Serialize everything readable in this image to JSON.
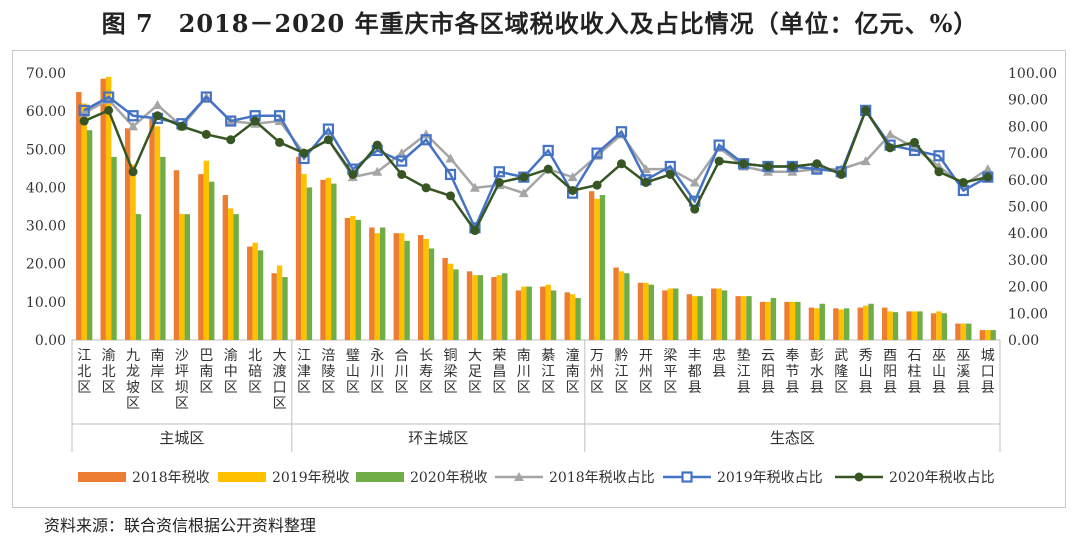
{
  "title": "图 7　2018－2020 年重庆市各区域税收收入及占比情况（单位：亿元、%）",
  "source": "资料来源：联合资信根据公开资料整理",
  "colors": {
    "s2018": "#ED7D31",
    "s2019": "#FFC000",
    "s2020": "#70AD47",
    "r2018": "#A5A5A5",
    "r2019": "#4472C4",
    "r2020": "#375623"
  },
  "chart_data": {
    "type": "bar",
    "title": "图 7　2018－2020 年重庆市各区域税收收入及占比情况（单位：亿元、%）",
    "categories": [
      "江北区",
      "渝北区",
      "九龙坡区",
      "南岸区",
      "沙坪坝区",
      "巴南区",
      "渝中区",
      "北碚区",
      "大渡口区",
      "江津区",
      "涪陵区",
      "璧山区",
      "永川区",
      "合川区",
      "长寿区",
      "铜梁区",
      "大足区",
      "荣昌区",
      "南川区",
      "綦江区",
      "潼南区",
      "万州区",
      "黔江区",
      "开州区",
      "梁平区",
      "丰都县",
      "忠县",
      "垫江县",
      "云阳县",
      "奉节县",
      "彭水县",
      "武隆区",
      "秀山县",
      "酉阳县",
      "石柱县",
      "巫山县",
      "巫溪县",
      "城口县"
    ],
    "groups": [
      {
        "name": "主城区",
        "count": 9
      },
      {
        "name": "环主城区",
        "count": 12
      },
      {
        "name": "生态区",
        "count": 17
      }
    ],
    "y_left": {
      "min": 0,
      "max": 70,
      "step": 10,
      "decimals": 2
    },
    "y_right": {
      "min": 0,
      "max": 100,
      "step": 10,
      "decimals": 2
    },
    "legend_position": "bottom",
    "bar_series": [
      {
        "name": "2018年税收",
        "values": [
          65,
          68.5,
          55.5,
          58,
          44.5,
          43.5,
          38,
          24.5,
          17.5,
          48,
          42,
          32,
          29.5,
          28,
          27.5,
          21.5,
          18,
          16.5,
          13,
          14,
          12.5,
          39,
          19,
          15,
          13,
          12,
          13.5,
          11.5,
          10,
          10,
          8.5,
          8.3,
          8.5,
          8.5,
          7.5,
          7,
          4.3,
          2.6
        ]
      },
      {
        "name": "2019年税收",
        "values": [
          62,
          69,
          46,
          56,
          33,
          47,
          34.5,
          25.5,
          19.5,
          43.5,
          42.5,
          32.5,
          28,
          28,
          26.5,
          20,
          17,
          17,
          14,
          14.5,
          12,
          37,
          18,
          15,
          13.5,
          11.5,
          13.5,
          11.5,
          10,
          10,
          8.3,
          8,
          9,
          7.5,
          7.5,
          7.5,
          4.3,
          2.6
        ]
      },
      {
        "name": "2020年税收",
        "values": [
          55,
          48,
          33,
          48,
          33,
          41.5,
          33,
          23.5,
          16.5,
          40,
          41,
          31.5,
          29.5,
          26,
          24,
          18.5,
          17,
          17.5,
          14,
          13,
          11,
          38,
          17.5,
          14.5,
          13.5,
          11.5,
          13,
          11.5,
          11,
          10,
          9.5,
          8.3,
          9.5,
          7.3,
          7.5,
          7,
          4.3,
          2.6
        ]
      }
    ],
    "line_series": [
      {
        "name": "2018年税收占比",
        "axis": "right",
        "marker": "triangle",
        "values": [
          85,
          90,
          80,
          88,
          80,
          91,
          82,
          81,
          82,
          70,
          75,
          61,
          63,
          70,
          77,
          68,
          57,
          58,
          55,
          64,
          61,
          69,
          77,
          64,
          64,
          59,
          72,
          65,
          63,
          63,
          64,
          64,
          67,
          77,
          72,
          65,
          58,
          64
        ]
      },
      {
        "name": "2019年税收占比",
        "axis": "right",
        "marker": "square",
        "values": [
          86,
          91,
          84,
          83,
          81,
          91,
          82,
          84,
          84,
          68,
          79,
          64,
          71,
          67,
          75,
          62,
          42,
          63,
          61,
          71,
          55,
          70,
          78,
          60,
          65,
          52,
          73,
          66,
          65,
          65,
          64,
          63,
          86,
          73,
          71,
          69,
          56,
          61
        ]
      },
      {
        "name": "2020年税收占比",
        "axis": "right",
        "marker": "circle",
        "values": [
          82,
          86,
          63,
          84,
          80,
          77,
          75,
          82,
          74,
          70,
          75,
          62,
          73,
          62,
          57,
          54,
          41,
          59,
          61,
          64,
          56,
          58,
          66,
          59,
          62,
          49,
          67,
          66,
          65,
          65,
          66,
          62,
          86,
          72,
          74,
          63,
          59,
          61
        ]
      }
    ]
  }
}
